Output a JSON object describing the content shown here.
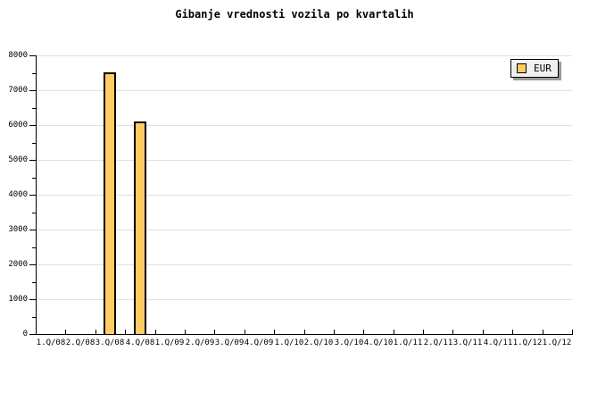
{
  "chart_data": {
    "type": "bar",
    "title": "Gibanje vrednosti vozila po kvartalih",
    "categories": [
      "1.Q/08",
      "2.Q/08",
      "3.Q/08",
      "4.Q/08",
      "1.Q/09",
      "2.Q/09",
      "3.Q/09",
      "4.Q/09",
      "1.Q/10",
      "2.Q/10",
      "3.Q/10",
      "4.Q/10",
      "1.Q/11",
      "2.Q/11",
      "3.Q/11",
      "4.Q/11",
      "1.Q/12",
      "1.Q/12"
    ],
    "series": [
      {
        "name": "EUR",
        "values": [
          null,
          null,
          7500,
          6100,
          null,
          null,
          null,
          null,
          null,
          null,
          null,
          null,
          null,
          null,
          null,
          null,
          null,
          null
        ]
      }
    ],
    "xlabel": "",
    "ylabel": "",
    "ylim": [
      0,
      8000
    ],
    "y_major_step": 1000,
    "y_minor_step": 500,
    "y_tick_labels": [
      "0",
      "1000",
      "2000",
      "3000",
      "4000",
      "5000",
      "6000",
      "7000",
      "8000"
    ],
    "grid": "horizontal-major",
    "legend_position": "top-right",
    "colors": {
      "bar_fill": "#ffcc66",
      "bar_border": "#000000",
      "grid": "#e0e0e0",
      "axis": "#000000",
      "text": "#000000",
      "legend_bg": "#f0f0f0",
      "legend_shadow": "#999999",
      "background": "#ffffff"
    }
  }
}
